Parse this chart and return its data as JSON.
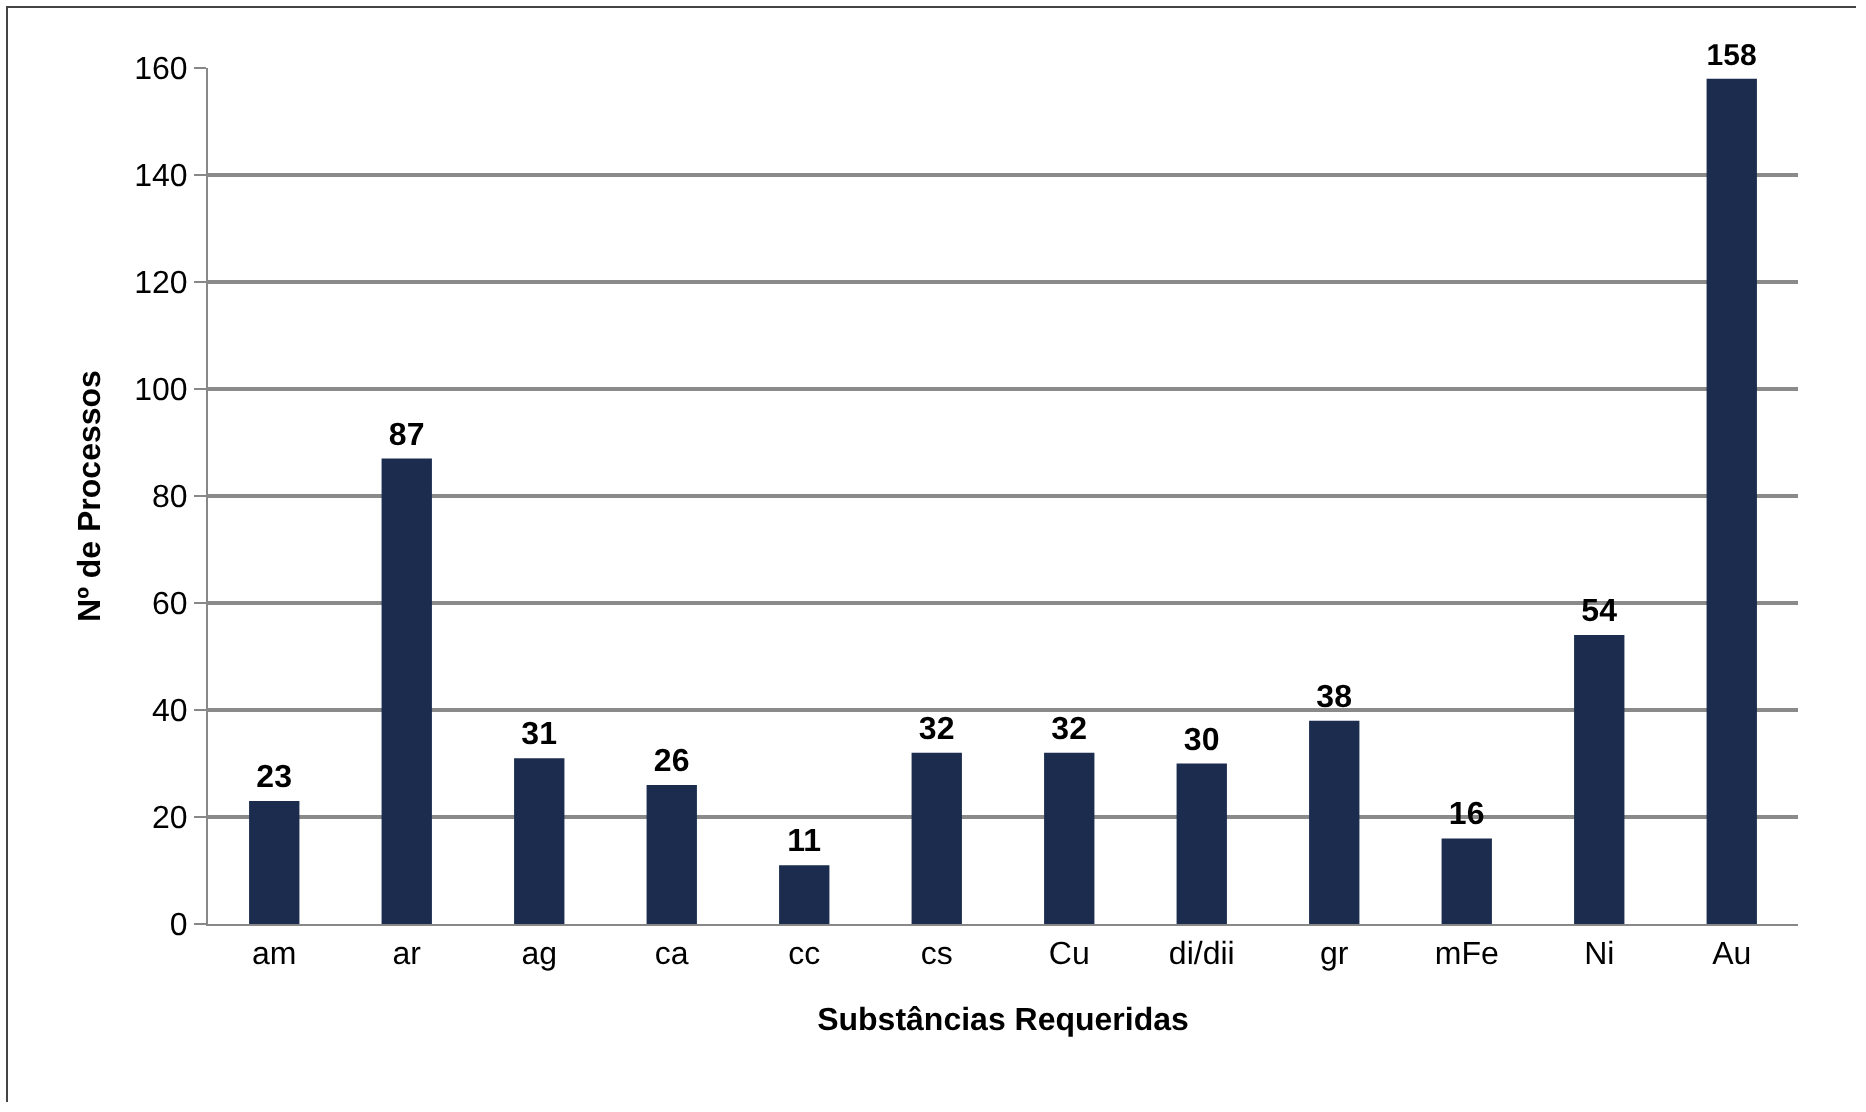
{
  "chart_data": {
    "type": "bar",
    "xlabel": "Substâncias Requeridas",
    "ylabel": "Nº de Processos",
    "categories": [
      "am",
      "ar",
      "ag",
      "ca",
      "cc",
      "cs",
      "Cu",
      "di/dii",
      "gr",
      "mFe",
      "Ni",
      "Au"
    ],
    "values": [
      23,
      87,
      31,
      26,
      11,
      32,
      32,
      30,
      38,
      16,
      54,
      158
    ],
    "color": "#1b2c4e",
    "ylim": [
      0,
      160
    ],
    "yticks": [
      0,
      20,
      40,
      60,
      80,
      100,
      120,
      140,
      160
    ],
    "grid": "y",
    "data_labels": true
  }
}
